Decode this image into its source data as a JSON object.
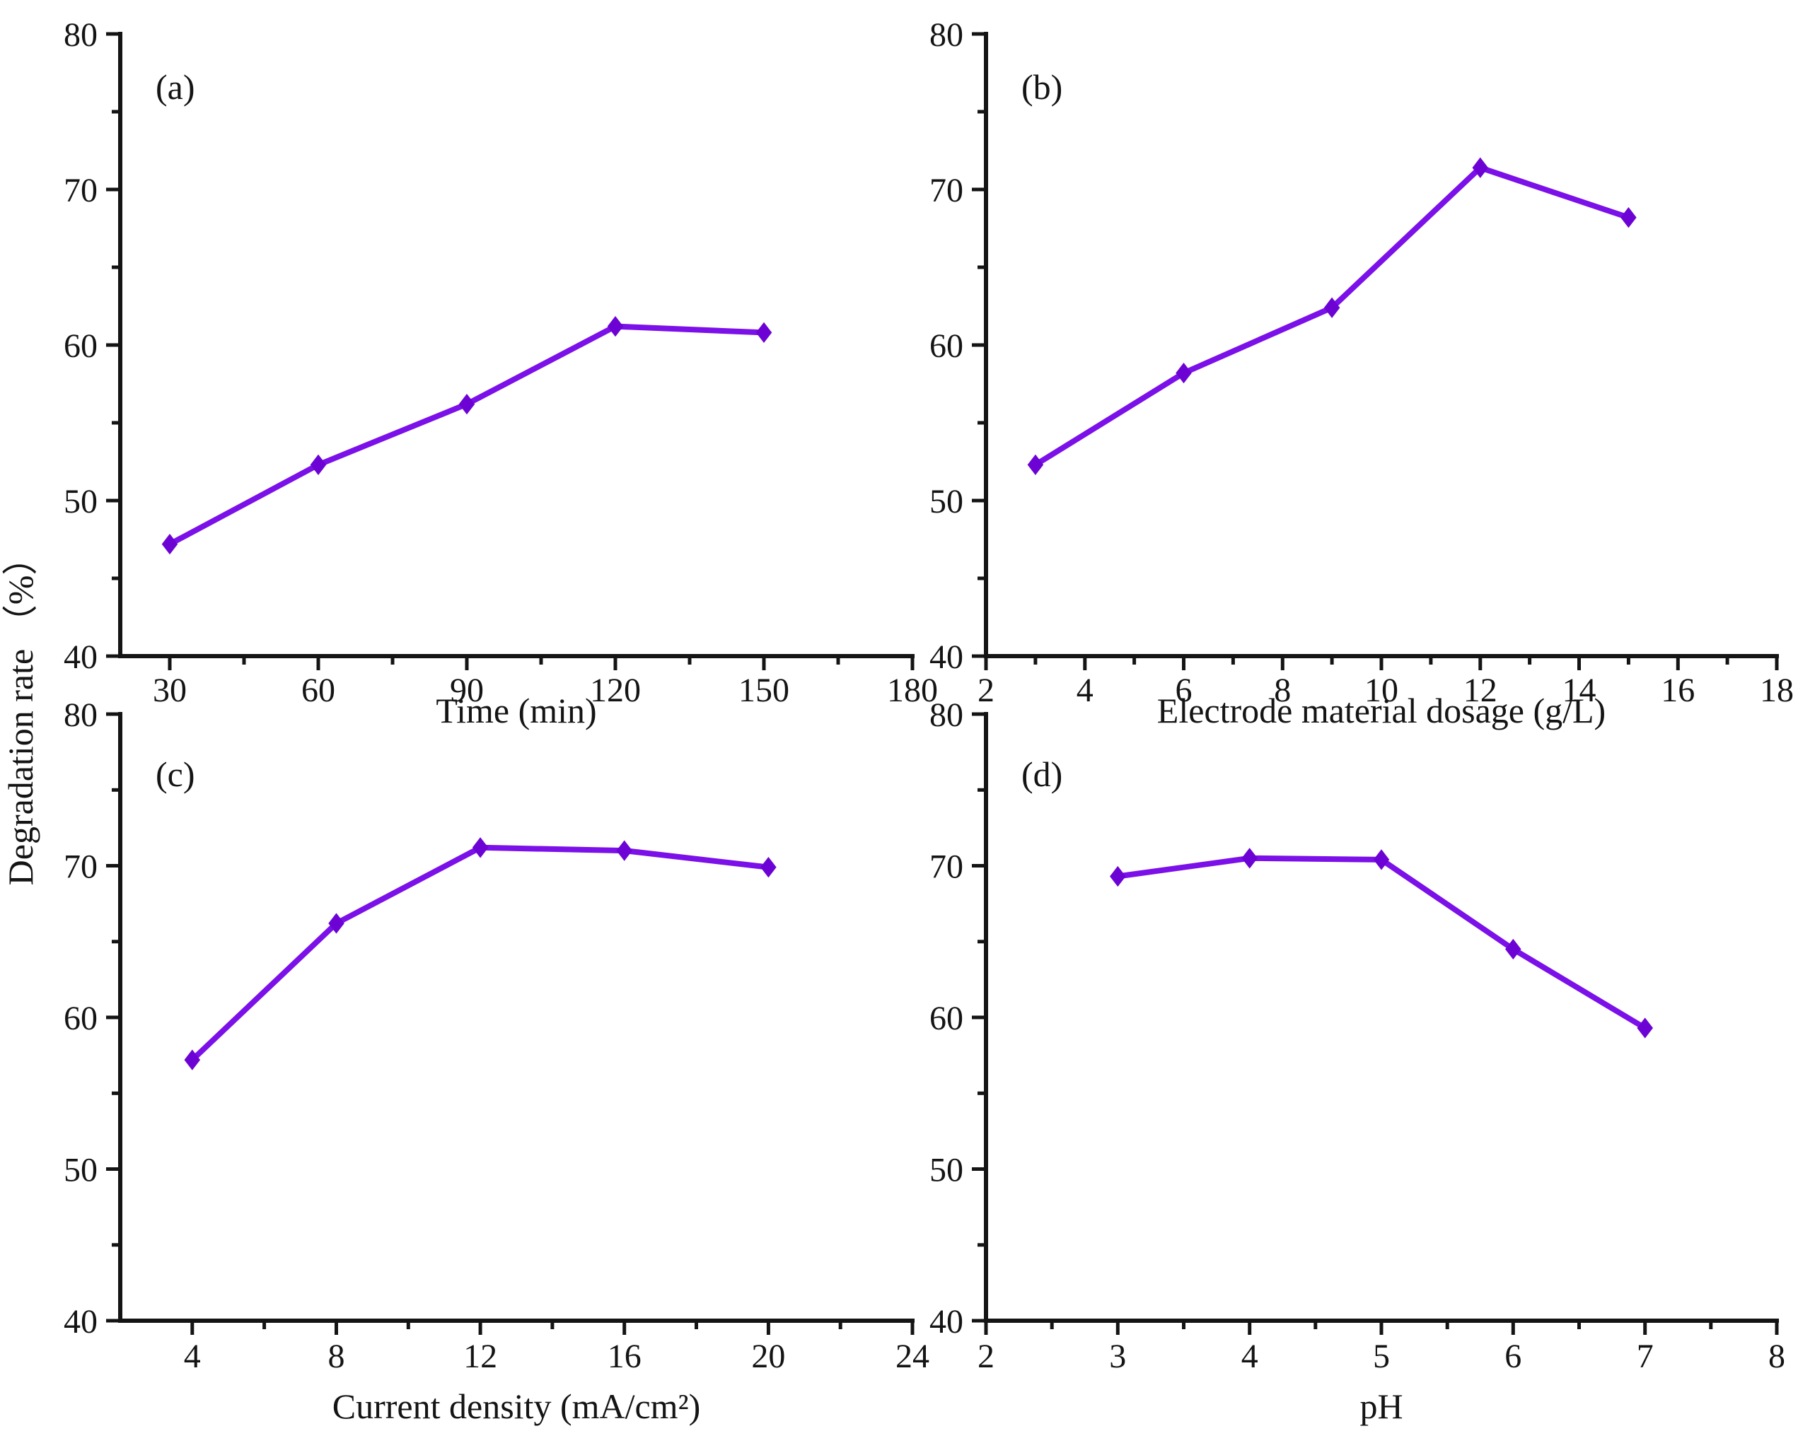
{
  "figure": {
    "shared_ylabel": "Degradation rate （%）",
    "panel_labels": [
      "(a)",
      "(b)",
      "(c)",
      "(d)"
    ],
    "colors": {
      "line": "#7b10e8",
      "marker": "#6c03d4",
      "axis": "#141414",
      "text": "#141414",
      "background": "#ffffff"
    },
    "marker_shape": "diamond"
  },
  "chart_data": [
    {
      "id": "a",
      "type": "line",
      "panel_label": "(a)",
      "xlabel": "Time (min)",
      "ylabel": "Degradation rate （%）",
      "x": [
        30,
        60,
        90,
        120,
        150
      ],
      "y": [
        47.2,
        52.3,
        56.2,
        61.2,
        60.8
      ],
      "xlim": [
        20,
        180
      ],
      "ylim": [
        40,
        80
      ],
      "xticks": [
        30,
        60,
        90,
        120,
        150,
        180
      ],
      "xminorticks": [
        45,
        75,
        105,
        135,
        165
      ],
      "yticks": [
        40,
        50,
        60,
        70,
        80
      ],
      "yminorticks": [
        45,
        55,
        65,
        75
      ],
      "grid": false,
      "legend": "none"
    },
    {
      "id": "b",
      "type": "line",
      "panel_label": "(b)",
      "xlabel": "Electrode material dosage (g/L)",
      "ylabel": "Degradation rate （%）",
      "x": [
        3,
        6,
        9,
        12,
        15
      ],
      "y": [
        52.3,
        58.2,
        62.4,
        71.4,
        68.2
      ],
      "xlim": [
        2,
        18
      ],
      "ylim": [
        40,
        80
      ],
      "xticks": [
        2,
        4,
        6,
        8,
        10,
        12,
        14,
        16,
        18
      ],
      "xminorticks": [
        3,
        5,
        7,
        9,
        11,
        13,
        15,
        17
      ],
      "yticks": [
        40,
        50,
        60,
        70,
        80
      ],
      "yminorticks": [
        45,
        55,
        65,
        75
      ],
      "grid": false,
      "legend": "none"
    },
    {
      "id": "c",
      "type": "line",
      "panel_label": "(c)",
      "xlabel": "Current density (mA/cm²)",
      "ylabel": "Degradation rate （%）",
      "x": [
        4,
        8,
        12,
        16,
        20
      ],
      "y": [
        57.2,
        66.2,
        71.2,
        71.0,
        69.9
      ],
      "xlim": [
        2,
        24
      ],
      "ylim": [
        40,
        80
      ],
      "xticks": [
        4,
        8,
        12,
        16,
        20,
        24
      ],
      "xminorticks": [
        6,
        10,
        14,
        18,
        22
      ],
      "yticks": [
        40,
        50,
        60,
        70,
        80
      ],
      "yminorticks": [
        45,
        55,
        65,
        75
      ],
      "grid": false,
      "legend": "none"
    },
    {
      "id": "d",
      "type": "line",
      "panel_label": "(d)",
      "xlabel": "pH",
      "ylabel": "Degradation rate （%）",
      "x": [
        3,
        4,
        5,
        6,
        7
      ],
      "y": [
        69.3,
        70.5,
        70.4,
        64.5,
        59.3
      ],
      "xlim": [
        2,
        8
      ],
      "ylim": [
        40,
        80
      ],
      "xticks": [
        2,
        3,
        4,
        5,
        6,
        7,
        8
      ],
      "xminorticks": [
        2.5,
        3.5,
        4.5,
        5.5,
        6.5,
        7.5
      ],
      "yticks": [
        40,
        50,
        60,
        70,
        80
      ],
      "yminorticks": [
        45,
        55,
        65,
        75
      ],
      "grid": false,
      "legend": "none"
    }
  ]
}
